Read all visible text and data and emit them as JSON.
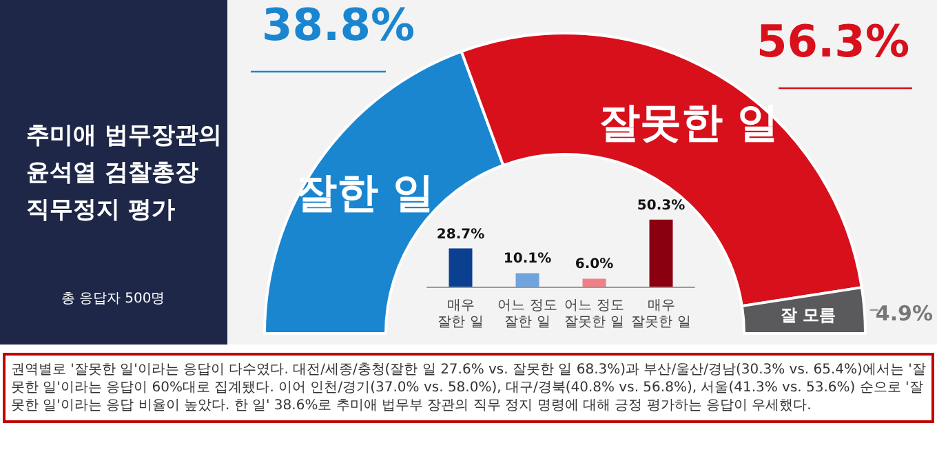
{
  "chart_data": [
    {
      "type": "donut",
      "title": "추미애 법무장관의\n윤석열 검찰총장\n직무정지 평가",
      "categories": [
        "잘한 일",
        "잘못한 일",
        "잘 모름"
      ],
      "values": [
        38.8,
        56.3,
        4.9
      ],
      "colors": [
        "#1a86d0",
        "#d7101c",
        "#5a5a5c"
      ],
      "value_labels": [
        "38.8%",
        "56.3%",
        "4.9%"
      ],
      "legend": false,
      "annotations": [
        "총 응답자 500명",
        "권역별로 '잘못한 일'이라는 응답이 다수였다. 대전/세종/충청(잘한 일 27.6% vs. 잘못한 일 68.3%)과 부산/울산/경남(30.3% vs. 65.4%)에서는 '잘못한 일'이라는 응답이 60%대로 집계됐다.",
        "이어 인천/경기(37.0% vs. 58.0%), 대구/경북(40.8% vs. 56.8%), 서울(41.3% vs. 53.6%) 순으로 '잘못한 일'이라는 응답 비율이 높았다.",
        "한 일' 38.6%로 추미애 법무부 장관의 직무 정지 명령에 대해 긍정 평가하는 응답이 우세했다."
      ]
    },
    {
      "type": "bar",
      "categories": [
        "매우 잘한 일",
        "어느 정도 잘한 일",
        "어느 정도 잘못한 일",
        "매우 잘못한 일"
      ],
      "values": [
        28.7,
        10.1,
        6.0,
        50.3
      ],
      "colors": [
        "#0b3f8f",
        "#6fa4dc",
        "#f08088",
        "#8b0010"
      ],
      "value_labels": [
        "28.7%",
        "10.1%",
        "6.0%",
        "50.3%"
      ],
      "grid": false,
      "legend": false
    }
  ]
}
